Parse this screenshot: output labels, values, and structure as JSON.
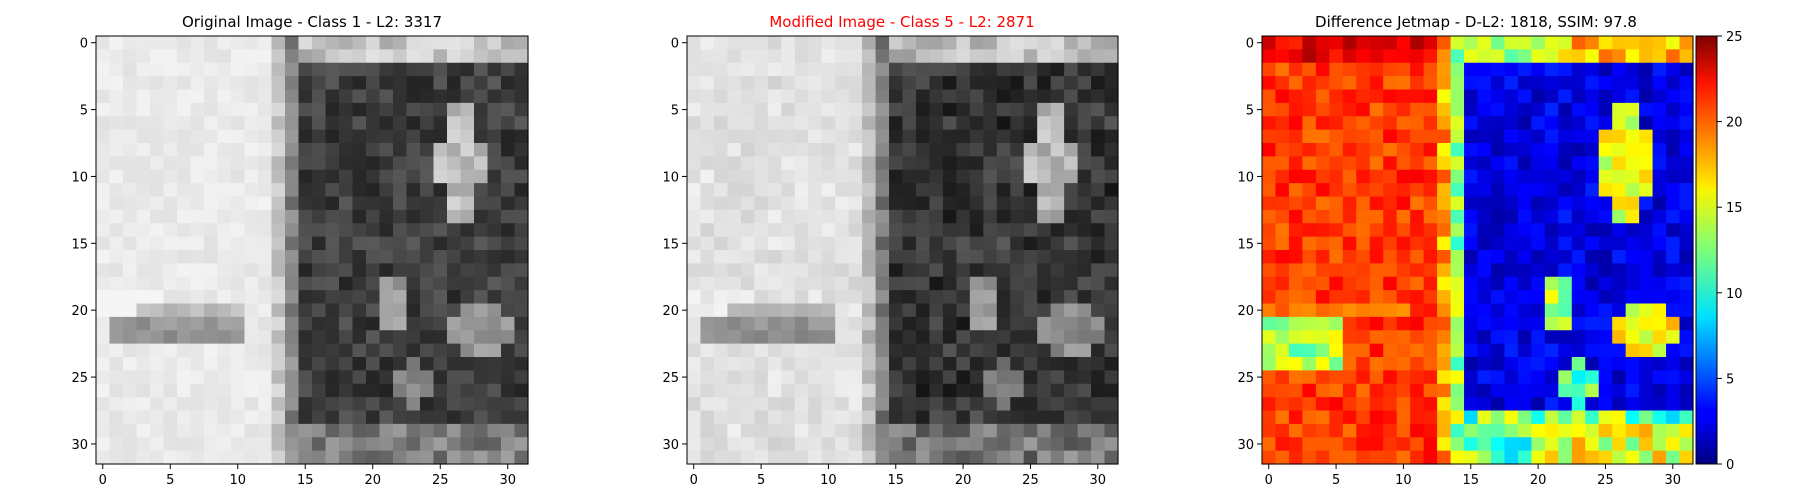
{
  "panels": [
    {
      "title": "Original Image - Class 1 - L2: 3317",
      "title_color": "#000000",
      "xticks": [
        "0",
        "5",
        "10",
        "15",
        "20",
        "25",
        "30"
      ],
      "yticks": [
        "0",
        "5",
        "10",
        "15",
        "20",
        "25",
        "30"
      ]
    },
    {
      "title": "Modified Image - Class 5 - L2: 2871",
      "title_color": "#ff0000",
      "xticks": [
        "0",
        "5",
        "10",
        "15",
        "20",
        "25",
        "30"
      ],
      "yticks": [
        "0",
        "5",
        "10",
        "15",
        "20",
        "25",
        "30"
      ]
    },
    {
      "title": "Difference Jetmap - D-L2: 1818, SSIM: 97.8",
      "title_color": "#000000",
      "xticks": [
        "0",
        "5",
        "10",
        "15",
        "20",
        "25",
        "30"
      ],
      "yticks": [
        "0",
        "5",
        "10",
        "15",
        "20",
        "25",
        "30"
      ]
    }
  ],
  "colorbar": {
    "ticks": [
      "0",
      "5",
      "10",
      "15",
      "20",
      "25"
    ],
    "colormap": "jet"
  },
  "chart_data": [
    {
      "type": "heatmap",
      "title": "Original Image - Class 1 - L2: 3317",
      "colormap": "gray",
      "grid_size": [
        32,
        32
      ],
      "xlim": [
        -0.5,
        31.5
      ],
      "ylim": [
        31.5,
        -0.5
      ],
      "approx_description_of_regions": "light gray left half (cols 0-13), dark vertical band cols 14-31 with bright oval around cols 25-28 rows 4-14 and gray blobs around rows 17-25, darker horizontal streak rows 21-22 cols 1-10"
    },
    {
      "type": "heatmap",
      "title": "Modified Image - Class 5 - L2: 2871",
      "colormap": "gray",
      "grid_size": [
        32,
        32
      ],
      "xlim": [
        -0.5,
        31.5
      ],
      "ylim": [
        31.5,
        -0.5
      ]
    },
    {
      "type": "heatmap",
      "title": "Difference Jetmap - D-L2: 1818, SSIM: 97.8",
      "colormap": "jet",
      "grid_size": [
        32,
        32
      ],
      "xlim": [
        -0.5,
        31.5
      ],
      "ylim": [
        31.5,
        -0.5
      ],
      "vmin": 0,
      "vmax": 25
    }
  ]
}
